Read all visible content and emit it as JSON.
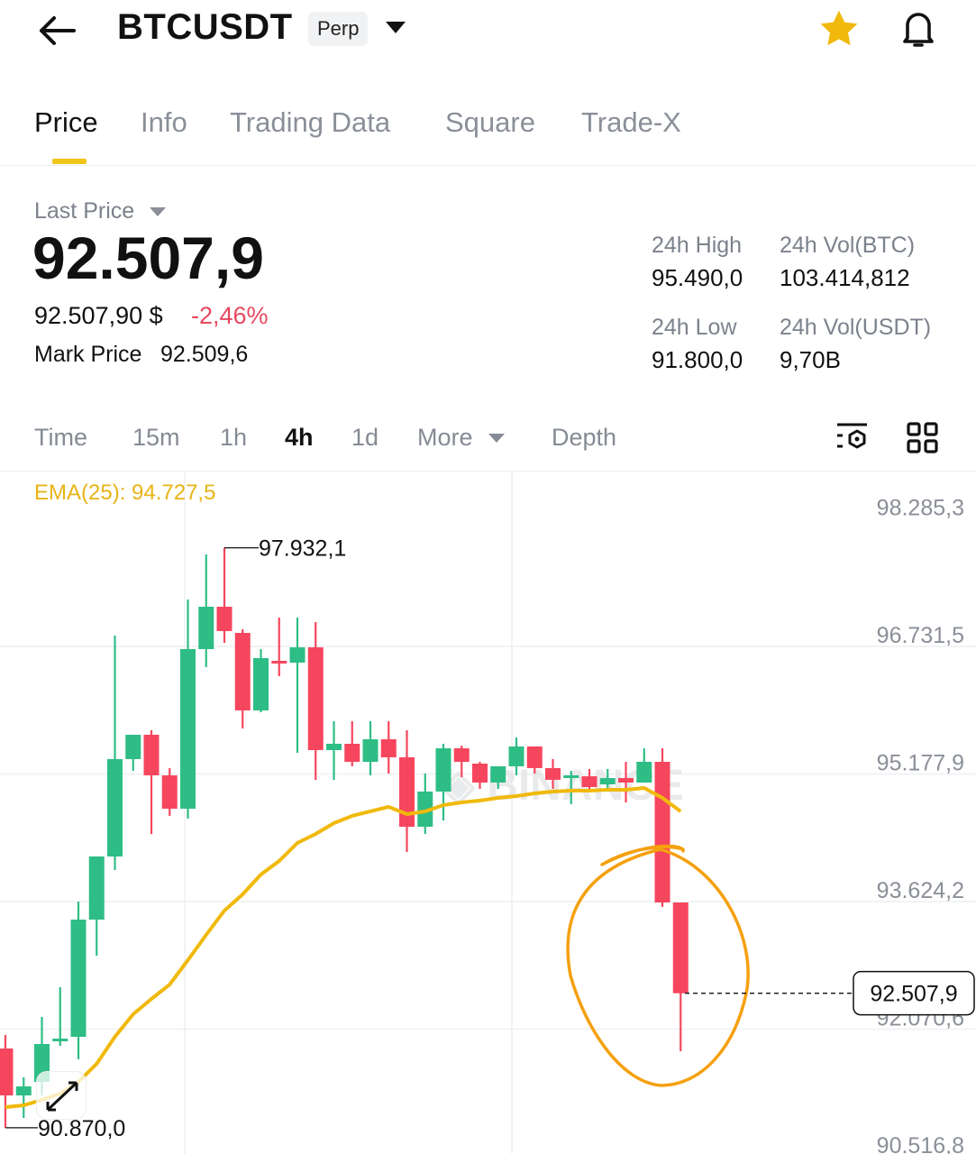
{
  "header": {
    "symbol": "BTCUSDT",
    "contract_badge": "Perp",
    "back_icon": "arrow-left-icon",
    "favorite_icon": "star-icon",
    "favorite_color": "#f0b90b",
    "alert_icon": "bell-icon"
  },
  "tabs": [
    {
      "label": "Price",
      "active": true
    },
    {
      "label": "Info"
    },
    {
      "label": "Trading Data"
    },
    {
      "label": "Square"
    },
    {
      "label": "Trade-X"
    }
  ],
  "ticker": {
    "last_price_label": "Last Price",
    "last_price": "92.507,9",
    "fiat_price": "92.507,90 $",
    "change_pct": "-2,46%",
    "change_color": "#e8485f",
    "mark_price_label": "Mark Price",
    "mark_price": "92.509,6",
    "high_label": "24h High",
    "high": "95.490,0",
    "low_label": "24h Low",
    "low": "91.800,0",
    "vol_btc_label": "24h Vol(BTC)",
    "vol_btc": "103.414,812",
    "vol_usdt_label": "24h Vol(USDT)",
    "vol_usdt": "9,70B"
  },
  "timeframes": [
    {
      "label": "Time"
    },
    {
      "label": "15m"
    },
    {
      "label": "1h"
    },
    {
      "label": "4h",
      "active": true
    },
    {
      "label": "1d"
    },
    {
      "label": "More"
    },
    {
      "label": "Depth"
    }
  ],
  "toolbar_icons": [
    "indicator-settings-icon",
    "grid-layout-icon"
  ],
  "chart_data": {
    "type": "candlestick",
    "indicator_label": "EMA(25): 94.727,5",
    "indicator_color": "#f0b90b",
    "up_color": "#2ebd85",
    "down_color": "#f6465d",
    "y_ticks": [
      "98.285,3",
      "96.731,5",
      "95.177,9",
      "93.624,2",
      "92.070,6",
      "90.516,8"
    ],
    "y_tick_values": [
      98285.3,
      96731.5,
      95177.9,
      93624.2,
      92070.6,
      90516.8
    ],
    "high_marker": "97.932,1",
    "low_marker": "90.870,0",
    "last_price_tag": "92.507,9",
    "last_price_value": 92507.9,
    "watermark": "BINANCE",
    "candles": [
      [
        91834.5,
        91999.2,
        90870.0,
        91263.5
      ],
      [
        91263.5,
        91483.1,
        90989.0,
        91373.3
      ],
      [
        91428.2,
        92218.8,
        91263.5,
        91889.4
      ],
      [
        91922.3,
        92581.1,
        91867.4,
        91955.2
      ],
      [
        91977.2,
        93624.2,
        91702.7,
        93404.6
      ],
      [
        93404.6,
        94173.2,
        92965.4,
        94173.2
      ],
      [
        94173.2,
        96863.3,
        94008.5,
        95359.0
      ],
      [
        95359.0,
        95655.5,
        95216.3,
        95655.5
      ],
      [
        95655.5,
        95710.4,
        94447.7,
        95161.4
      ],
      [
        95161.4,
        95249.2,
        94667.3,
        94755.1
      ],
      [
        94755.1,
        97302.5,
        94634.4,
        96698.6
      ],
      [
        96698.6,
        97851.5,
        96479.0,
        97214.7
      ],
      [
        97214.7,
        97932.1,
        96775.5,
        96918.2
      ],
      [
        96896.2,
        96940.2,
        95732.4,
        95952.0
      ],
      [
        95952.0,
        96698.6,
        95930.0,
        96588.8
      ],
      [
        96555.9,
        97082.9,
        96369.2,
        96533.9
      ],
      [
        96533.9,
        97082.9,
        95435.9,
        96720.6
      ],
      [
        96720.6,
        97028.0,
        95106.5,
        95468.8
      ],
      [
        95468.8,
        95820.2,
        95106.5,
        95545.7
      ],
      [
        95545.7,
        95820.2,
        95271.2,
        95326.1
      ],
      [
        95326.1,
        95820.2,
        95161.4,
        95600.6
      ],
      [
        95600.6,
        95820.2,
        95183.4,
        95381.0
      ],
      [
        95381.0,
        95710.4,
        94228.1,
        94535.5
      ],
      [
        94535.5,
        95183.4,
        94447.7,
        94963.8
      ],
      [
        94963.8,
        95545.7,
        94612.4,
        95490.8
      ],
      [
        95490.8,
        95523.7,
        95139.4,
        95326.1
      ],
      [
        95304.1,
        95326.1,
        94996.7,
        95073.6
      ],
      [
        95073.6,
        95271.2,
        94996.7,
        95271.2
      ],
      [
        95271.2,
        95622.6,
        95161.4,
        95512.8
      ],
      [
        95512.8,
        95512.8,
        95183.4,
        95249.2
      ],
      [
        95249.2,
        95359.0,
        94996.7,
        95107.0
      ],
      [
        95128.5,
        95216.3,
        94810.0,
        95161.4
      ],
      [
        95150.0,
        95238.3,
        94963.8,
        95018.7
      ],
      [
        95051.6,
        95238.3,
        94996.7,
        95128.5
      ],
      [
        95128.5,
        95326.1,
        94832.0,
        95073.6
      ],
      [
        95073.6,
        95490.8,
        95073.6,
        95326.1
      ],
      [
        95326.1,
        95490.8,
        93558.3,
        93613.2
      ],
      [
        93613.2,
        93613.2,
        91801.5,
        92507.9
      ]
    ],
    "ema25": [
      91120.8,
      91142.7,
      91208.6,
      91285.3,
      91428.2,
      91647.8,
      91977.2,
      92251.7,
      92438.4,
      92614.0,
      92910.5,
      93217.9,
      93514.4,
      93712.0,
      93953.6,
      94118.3,
      94337.9,
      94447.7,
      94579.5,
      94667.3,
      94722.2,
      94777.1,
      94689.1,
      94722.2,
      94799.1,
      94832.0,
      94854.0,
      94886.9,
      94908.9,
      94941.8,
      94963.8,
      94974.7,
      94974.7,
      94985.7,
      94985.7,
      95007.7,
      94886.9,
      94722.2
    ],
    "annotation_color": "#f5a00f"
  }
}
